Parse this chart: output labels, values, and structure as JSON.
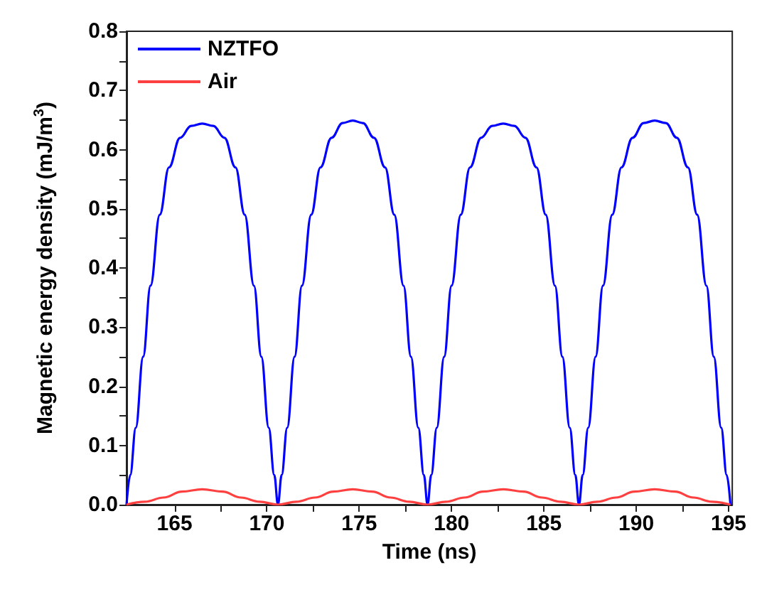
{
  "chart_data": {
    "type": "line",
    "xlabel": "Time (ns)",
    "ylabel": "Magnetic energy density (mJ/m$^{3}$)",
    "xlim": [
      162.4,
      195.2
    ],
    "ylim": [
      0,
      0.8
    ],
    "xticks": [
      165,
      {
        "value": 167.5,
        "label": null
      },
      170,
      {
        "value": 172.5,
        "label": null
      },
      175,
      {
        "value": 177.5,
        "label": null
      },
      180,
      {
        "value": 182.5,
        "label": null
      },
      185,
      {
        "value": 187.5,
        "label": null
      },
      190,
      {
        "value": 192.5,
        "label": null
      },
      195
    ],
    "yticks": [
      {
        "value": 0,
        "label": "0.0"
      },
      {
        "value": 0.05,
        "label": null
      },
      0.1,
      {
        "value": 0.15,
        "label": null
      },
      0.2,
      {
        "value": 0.25,
        "label": null
      },
      0.3,
      {
        "value": 0.35,
        "label": null
      },
      0.4,
      {
        "value": 0.45,
        "label": null
      },
      0.5,
      {
        "value": 0.55,
        "label": null
      },
      0.6,
      {
        "value": 0.65,
        "label": null
      },
      0.7,
      {
        "value": 0.75,
        "label": null
      },
      0.8
    ],
    "grid": false,
    "legend": "top left",
    "marker": "none",
    "line_style": "solid",
    "series": [
      {
        "name": "NZTFO",
        "color": "#0000ff",
        "x": [
          162.4,
          162.6,
          162.9,
          163.3,
          163.7,
          164.2,
          164.7,
          165.3,
          165.9,
          166.5,
          167.1,
          167.7,
          168.3,
          168.8,
          169.3,
          169.7,
          170.1,
          170.4,
          170.6,
          170.8,
          171.1,
          171.5,
          171.9,
          172.4,
          172.9,
          173.5,
          174.1,
          174.65,
          175.2,
          175.8,
          176.4,
          176.9,
          177.4,
          177.8,
          178.2,
          178.5,
          178.7,
          178.9,
          179.2,
          179.6,
          180.0,
          180.5,
          181.0,
          181.6,
          182.2,
          182.8,
          183.4,
          184.0,
          184.6,
          185.1,
          185.6,
          186.0,
          186.4,
          186.7,
          186.9,
          187.1,
          187.4,
          187.8,
          188.2,
          188.7,
          189.2,
          189.8,
          190.4,
          191.0,
          191.6,
          192.2,
          192.8,
          193.3,
          193.8,
          194.2,
          194.6,
          194.9,
          195.1
        ],
        "values": [
          0,
          0.05,
          0.13,
          0.25,
          0.37,
          0.49,
          0.57,
          0.62,
          0.64,
          0.644,
          0.64,
          0.62,
          0.57,
          0.49,
          0.37,
          0.25,
          0.13,
          0.05,
          0,
          0.05,
          0.13,
          0.25,
          0.37,
          0.49,
          0.57,
          0.62,
          0.645,
          0.649,
          0.645,
          0.62,
          0.57,
          0.49,
          0.37,
          0.25,
          0.13,
          0.05,
          0,
          0.05,
          0.13,
          0.25,
          0.37,
          0.49,
          0.57,
          0.62,
          0.64,
          0.644,
          0.64,
          0.62,
          0.57,
          0.49,
          0.37,
          0.25,
          0.13,
          0.05,
          0,
          0.05,
          0.13,
          0.25,
          0.37,
          0.49,
          0.57,
          0.62,
          0.645,
          0.649,
          0.645,
          0.62,
          0.57,
          0.49,
          0.37,
          0.25,
          0.13,
          0.05,
          0
        ]
      },
      {
        "name": "Air",
        "color": "#ff4040",
        "x": [
          162.4,
          163.4,
          164.4,
          165.4,
          166.5,
          167.6,
          168.6,
          169.6,
          170.6,
          171.6,
          172.6,
          173.6,
          174.65,
          175.7,
          176.7,
          177.7,
          178.7,
          179.7,
          180.7,
          181.7,
          182.8,
          183.9,
          184.9,
          185.9,
          186.9,
          187.9,
          188.9,
          189.9,
          191.0,
          192.1,
          193.1,
          194.1,
          195.1
        ],
        "values": [
          0,
          0.005,
          0.012,
          0.022,
          0.026,
          0.022,
          0.012,
          0.005,
          0,
          0.005,
          0.012,
          0.022,
          0.026,
          0.022,
          0.012,
          0.005,
          0,
          0.005,
          0.012,
          0.022,
          0.026,
          0.022,
          0.012,
          0.005,
          0,
          0.005,
          0.012,
          0.022,
          0.026,
          0.022,
          0.012,
          0.005,
          0
        ]
      }
    ]
  }
}
